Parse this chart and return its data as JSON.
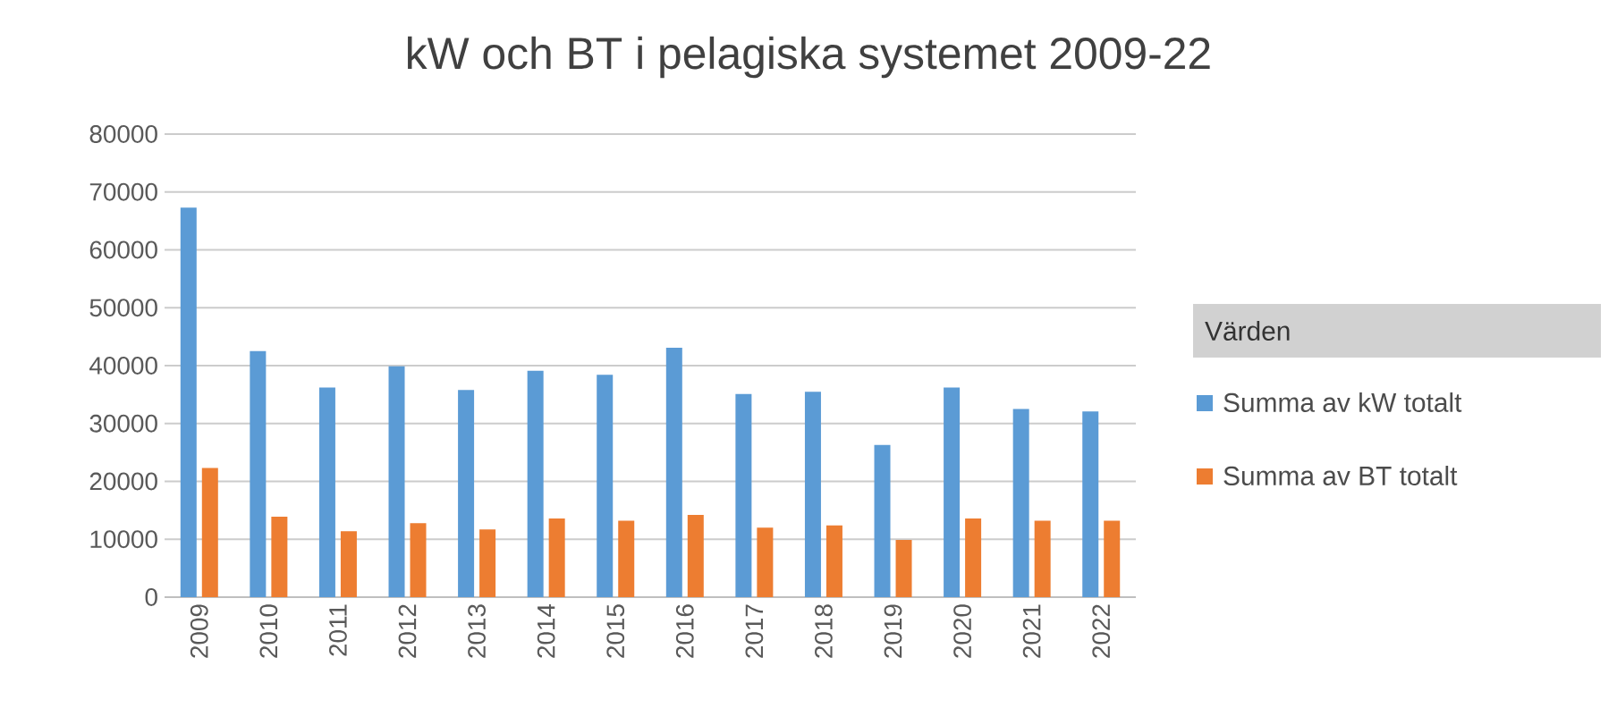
{
  "chart_data": {
    "type": "bar",
    "title": "kW och BT i pelagiska systemet 2009-22",
    "legend_title": "Värden",
    "categories": [
      "2009",
      "2010",
      "2011",
      "2012",
      "2013",
      "2014",
      "2015",
      "2016",
      "2017",
      "2018",
      "2019",
      "2020",
      "2021",
      "2022"
    ],
    "series": [
      {
        "name": "Summa av kW totalt",
        "color": "#5b9bd5",
        "values": [
          67300,
          42500,
          36200,
          39900,
          35800,
          39100,
          38400,
          43100,
          35100,
          35500,
          26300,
          36200,
          32500,
          32100
        ]
      },
      {
        "name": "Summa av BT totalt",
        "color": "#ed7d31",
        "values": [
          22300,
          13900,
          11400,
          12800,
          11700,
          13600,
          13200,
          14200,
          12000,
          12400,
          9900,
          13600,
          13200,
          13200
        ]
      }
    ],
    "ylim": [
      0,
      80000
    ],
    "yticks": [
      0,
      10000,
      20000,
      30000,
      40000,
      50000,
      60000,
      70000,
      80000
    ],
    "grid": "y",
    "legend": "right"
  }
}
